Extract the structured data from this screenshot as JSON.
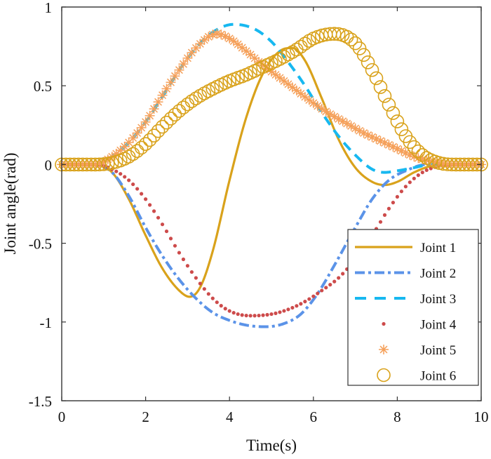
{
  "chart_data": {
    "type": "line",
    "title": "",
    "xlabel": "Time(s)",
    "ylabel": "Joint angle(rad)",
    "xlim": [
      0,
      10
    ],
    "ylim": [
      -1.5,
      1
    ],
    "xticks": [
      0,
      2,
      4,
      6,
      8,
      10
    ],
    "xtick_labels": [
      "0",
      "2",
      "4",
      "6",
      "8",
      "10"
    ],
    "yticks": [
      -1.5,
      -1,
      -0.5,
      0,
      0.5,
      1
    ],
    "ytick_labels": [
      "-1.5",
      "-1",
      "-0.5",
      "0",
      "0.5",
      "1"
    ],
    "grid": false,
    "legend_position": "bottom-right",
    "series": [
      {
        "name": "Joint 1",
        "color": "#D9A21B",
        "style": "solid",
        "marker": "none",
        "x": [
          0,
          0.8,
          1.2,
          1.6,
          2.0,
          2.4,
          2.8,
          3.05,
          3.3,
          3.6,
          4.0,
          4.4,
          4.8,
          5.2,
          5.5,
          5.8,
          6.2,
          6.6,
          7.0,
          7.4,
          7.7,
          8.0,
          8.4,
          8.8,
          9.2,
          10
        ],
        "y": [
          0,
          0,
          -0.05,
          -0.22,
          -0.45,
          -0.66,
          -0.8,
          -0.84,
          -0.78,
          -0.55,
          -0.1,
          0.3,
          0.58,
          0.72,
          0.74,
          0.66,
          0.42,
          0.16,
          -0.02,
          -0.11,
          -0.13,
          -0.11,
          -0.05,
          -0.01,
          0,
          0
        ]
      },
      {
        "name": "Joint 2",
        "color": "#5B93E8",
        "style": "dashdot",
        "marker": "none",
        "x": [
          0,
          0.8,
          1.2,
          1.6,
          2.0,
          2.4,
          2.8,
          3.2,
          3.6,
          4.0,
          4.4,
          4.85,
          5.3,
          5.7,
          6.1,
          6.5,
          7.0,
          7.4,
          7.8,
          8.2,
          8.7,
          9.2,
          10
        ],
        "y": [
          0,
          0,
          -0.05,
          -0.2,
          -0.4,
          -0.58,
          -0.73,
          -0.85,
          -0.94,
          -0.99,
          -1.02,
          -1.03,
          -1.01,
          -0.95,
          -0.82,
          -0.64,
          -0.4,
          -0.22,
          -0.1,
          -0.04,
          0,
          0,
          0
        ]
      },
      {
        "name": "Joint 3",
        "color": "#17B8F0",
        "style": "dashed",
        "marker": "none",
        "x": [
          0,
          0.8,
          1.2,
          1.6,
          2.0,
          2.4,
          2.8,
          3.2,
          3.6,
          4.1,
          4.6,
          5.0,
          5.4,
          5.8,
          6.2,
          6.6,
          7.0,
          7.4,
          7.7,
          8.0,
          8.4,
          8.8,
          9.2,
          10
        ],
        "y": [
          0,
          0,
          0.05,
          0.14,
          0.27,
          0.43,
          0.6,
          0.74,
          0.84,
          0.89,
          0.86,
          0.78,
          0.65,
          0.5,
          0.33,
          0.18,
          0.06,
          -0.03,
          -0.05,
          -0.04,
          -0.02,
          0,
          0,
          0
        ]
      },
      {
        "name": "Joint 4",
        "color": "#CD4B4B",
        "style": "none",
        "marker": "dot",
        "x": [
          0,
          0.8,
          1.2,
          1.6,
          2.0,
          2.4,
          2.8,
          3.2,
          3.6,
          4.0,
          4.5,
          5.0,
          5.4,
          5.8,
          6.2,
          6.6,
          7.0,
          7.4,
          7.8,
          8.2,
          8.6,
          9.0,
          9.4,
          10
        ],
        "y": [
          0,
          0,
          -0.03,
          -0.1,
          -0.22,
          -0.38,
          -0.56,
          -0.72,
          -0.85,
          -0.93,
          -0.96,
          -0.95,
          -0.92,
          -0.87,
          -0.8,
          -0.72,
          -0.6,
          -0.45,
          -0.28,
          -0.14,
          -0.05,
          -0.01,
          0,
          0
        ]
      },
      {
        "name": "Joint 5",
        "color": "#F5A05A",
        "style": "none",
        "marker": "asterisk",
        "x": [
          0,
          0.8,
          1.2,
          1.6,
          2.0,
          2.4,
          2.8,
          3.2,
          3.7,
          4.0,
          4.4,
          4.8,
          5.2,
          5.6,
          6.0,
          6.4,
          6.8,
          7.2,
          7.6,
          8.0,
          8.4,
          8.8,
          9.1,
          9.4,
          10
        ],
        "y": [
          0,
          0,
          0.05,
          0.14,
          0.27,
          0.44,
          0.6,
          0.74,
          0.83,
          0.8,
          0.72,
          0.63,
          0.55,
          0.47,
          0.39,
          0.32,
          0.26,
          0.2,
          0.15,
          0.1,
          0.05,
          0.02,
          0.005,
          0,
          0
        ]
      },
      {
        "name": "Joint 6",
        "color": "#D9A21B",
        "style": "none",
        "marker": "circle",
        "x": [
          0,
          0.8,
          1.2,
          1.6,
          2.0,
          2.4,
          2.8,
          3.2,
          3.6,
          4.0,
          4.4,
          4.8,
          5.2,
          5.6,
          6.0,
          6.5,
          7.0,
          7.4,
          7.8,
          8.2,
          8.6,
          9.0,
          9.4,
          10
        ],
        "y": [
          0,
          0,
          0.01,
          0.05,
          0.13,
          0.24,
          0.34,
          0.42,
          0.48,
          0.53,
          0.57,
          0.62,
          0.67,
          0.73,
          0.8,
          0.83,
          0.77,
          0.6,
          0.38,
          0.18,
          0.06,
          0.01,
          0,
          0
        ]
      }
    ]
  }
}
